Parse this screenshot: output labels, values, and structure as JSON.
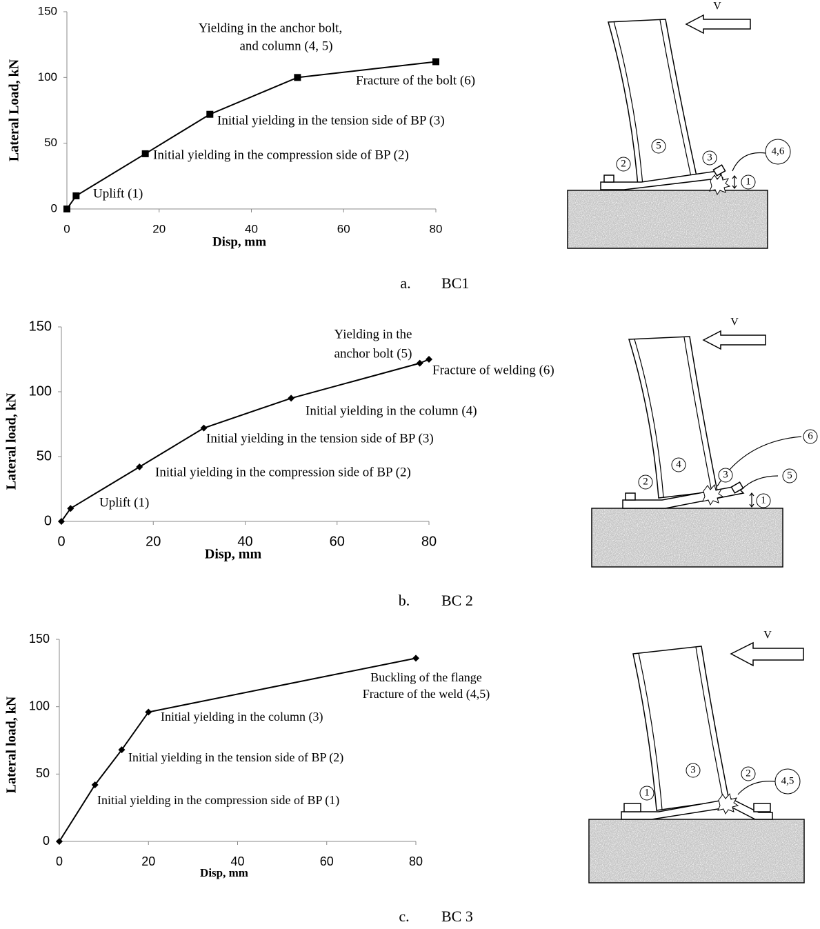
{
  "chart_data": [
    {
      "type": "line",
      "marker": "square",
      "color": "#000000",
      "ylabel": "Lateral Load, kN",
      "xlabel": "Disp, mm",
      "x": [
        0,
        2,
        17,
        31,
        50,
        80
      ],
      "values": [
        0,
        10,
        42,
        72,
        100,
        112
      ],
      "xlim": [
        0,
        80
      ],
      "ylim": [
        0,
        150
      ],
      "xticks": [
        0,
        20,
        40,
        60,
        80
      ],
      "yticks": [
        0,
        50,
        100,
        150
      ],
      "annotations": [
        "Yielding in the anchor bolt,",
        "and column (4, 5)",
        "Fracture of the bolt (6)",
        "Initial yielding in the tension side of BP (3)",
        "Initial yielding in the compression side of BP (2)",
        "Uplift (1)"
      ],
      "caption_letter": "a.",
      "caption": "BC1"
    },
    {
      "type": "line",
      "marker": "diamond",
      "color": "#000000",
      "ylabel": "Lateral load, kN",
      "xlabel": "Disp, mm",
      "x": [
        0,
        2,
        17,
        31,
        50,
        78,
        80
      ],
      "values": [
        0,
        10,
        42,
        72,
        95,
        122,
        125
      ],
      "xlim": [
        0,
        80
      ],
      "ylim": [
        0,
        150
      ],
      "xticks": [
        0,
        20,
        40,
        60,
        80
      ],
      "yticks": [
        0,
        50,
        100,
        150
      ],
      "annotations": [
        "Yielding in the",
        "anchor bolt (5)",
        "Fracture of welding (6)",
        "Initial yielding in the column (4)",
        "Initial yielding in the tension side of BP (3)",
        "Initial yielding in the compression side of BP (2)",
        "Uplift (1)"
      ],
      "caption_letter": "b.",
      "caption": "BC 2"
    },
    {
      "type": "line",
      "marker": "diamond",
      "color": "#000000",
      "ylabel": "Lateral load, kN",
      "xlabel": "Disp, mm",
      "x": [
        0,
        8,
        14,
        20,
        80
      ],
      "values": [
        0,
        42,
        68,
        96,
        136
      ],
      "xlim": [
        0,
        80
      ],
      "ylim": [
        0,
        150
      ],
      "xticks": [
        0,
        20,
        40,
        60,
        80
      ],
      "yticks": [
        0,
        50,
        100,
        150
      ],
      "annotations": [
        "Buckling of the flange",
        "Fracture of the weld (4,5)",
        "Initial yielding in the column (3)",
        "Initial yielding in the tension side of BP (2)",
        "Initial yielding in the compression side of BP (1)"
      ],
      "caption_letter": "c.",
      "caption": "BC 3"
    }
  ],
  "diagrams": [
    {
      "load_label": "V",
      "labels": [
        "5",
        "2",
        "3",
        "4,6",
        "1"
      ]
    },
    {
      "load_label": "V",
      "labels": [
        "4",
        "2",
        "3",
        "6",
        "5",
        "1"
      ]
    },
    {
      "load_label": "V",
      "labels": [
        "3",
        "1",
        "2",
        "4,5"
      ]
    }
  ]
}
